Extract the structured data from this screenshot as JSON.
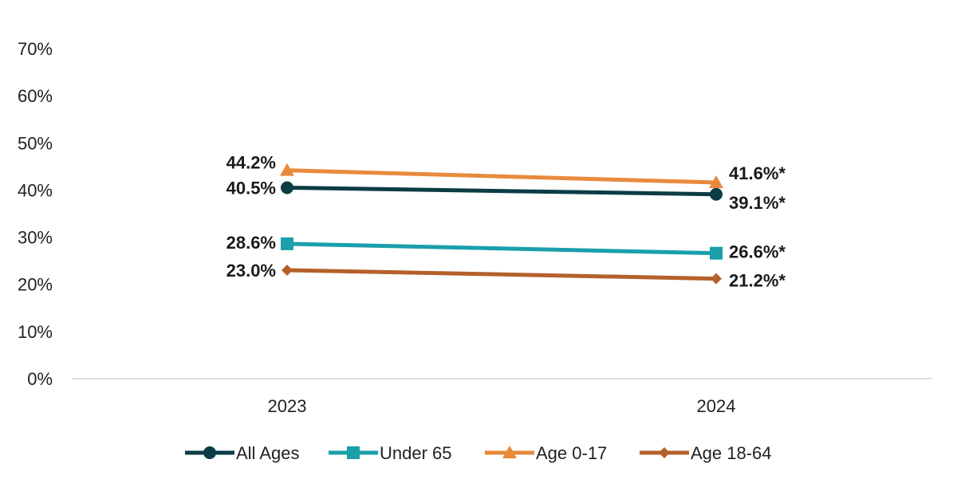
{
  "chart_data": {
    "type": "line",
    "title": "",
    "xlabel": "",
    "ylabel": "",
    "categories": [
      "2023",
      "2024"
    ],
    "ylim": [
      0,
      70
    ],
    "yticks": [
      0,
      10,
      20,
      30,
      40,
      50,
      60,
      70
    ],
    "ytick_labels": [
      "0%",
      "10%",
      "20%",
      "30%",
      "40%",
      "50%",
      "60%",
      "70%"
    ],
    "grid": false,
    "legend_position": "bottom",
    "series": [
      {
        "name": "All Ages",
        "values": [
          40.5,
          39.1
        ],
        "labels": [
          "40.5%",
          "39.1%*"
        ],
        "color": "#0b3d45",
        "marker": "circle"
      },
      {
        "name": "Under 65",
        "values": [
          28.6,
          26.6
        ],
        "labels": [
          "28.6%",
          "26.6%*"
        ],
        "color": "#1a9fab",
        "marker": "square"
      },
      {
        "name": "Age 0-17",
        "values": [
          44.2,
          41.6
        ],
        "labels": [
          "44.2%",
          "41.6%*"
        ],
        "color": "#e88a3c",
        "marker": "triangle"
      },
      {
        "name": "Age 18-64",
        "values": [
          23.0,
          21.2
        ],
        "labels": [
          "23.0%",
          "21.2%*"
        ],
        "color": "#b5602a",
        "marker": "diamond"
      }
    ]
  }
}
